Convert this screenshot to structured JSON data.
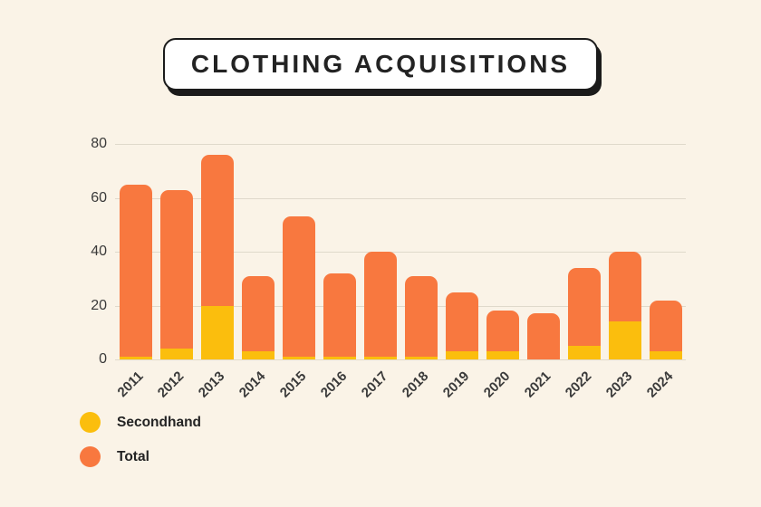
{
  "title": "CLOTHING ACQUISITIONS",
  "colors": {
    "background": "#FAF3E7",
    "secondhand": "#FBBE0D",
    "total": "#F8783F",
    "gridline": "#DFD9CB",
    "title_text": "#232323",
    "axis_text": "#3A3A3A",
    "title_box_bg": "#FFFFFF",
    "title_box_border": "#1B1B1B"
  },
  "chart_data": {
    "type": "bar",
    "title": "CLOTHING ACQUISITIONS",
    "categories": [
      "2011",
      "2012",
      "2013",
      "2014",
      "2015",
      "2016",
      "2017",
      "2018",
      "2019",
      "2020",
      "2021",
      "2022",
      "2023",
      "2024"
    ],
    "series": [
      {
        "name": "Secondhand",
        "color_key": "secondhand",
        "values": [
          1,
          4,
          20,
          3,
          1,
          1,
          1,
          1,
          3,
          3,
          0,
          5,
          14,
          3
        ]
      },
      {
        "name": "Total",
        "color_key": "total",
        "values": [
          65,
          63,
          76,
          31,
          53,
          32,
          40,
          31,
          25,
          18,
          17,
          34,
          40,
          22
        ]
      }
    ],
    "xlabel": "",
    "ylabel": "",
    "ylim": [
      0,
      80
    ],
    "yticks": [
      0,
      20,
      40,
      60,
      80
    ],
    "grid": true,
    "legend_position": "bottom-left",
    "bar_style": "total bars drawn full height with secondhand segment overlaid at the base",
    "x_tick_rotation_deg": -45
  },
  "legend": {
    "items": [
      {
        "label": "Secondhand",
        "color_key": "secondhand"
      },
      {
        "label": "Total",
        "color_key": "total"
      }
    ]
  }
}
